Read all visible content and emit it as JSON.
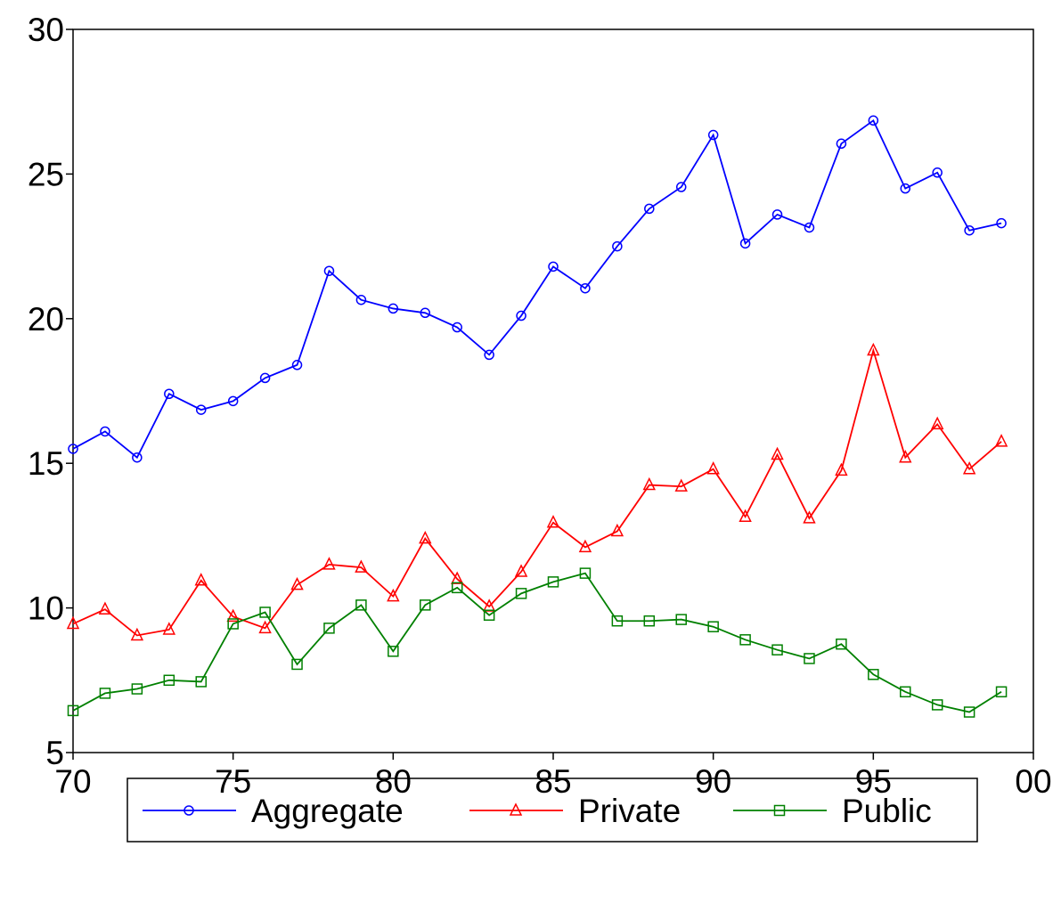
{
  "chart_data": {
    "type": "line",
    "x": [
      70,
      71,
      72,
      73,
      74,
      75,
      76,
      77,
      78,
      79,
      80,
      81,
      82,
      83,
      84,
      85,
      86,
      87,
      88,
      89,
      90,
      91,
      92,
      93,
      94,
      95,
      96,
      97,
      98,
      99
    ],
    "xlim": [
      70,
      100
    ],
    "xticks": [
      70,
      75,
      80,
      85,
      90,
      95,
      {
        "value": 100,
        "label": "00"
      }
    ],
    "ylim": [
      5,
      30
    ],
    "yticks": [
      5,
      10,
      15,
      20,
      25,
      30
    ],
    "legend": "bottom",
    "series": [
      {
        "name": "Aggregate",
        "color": "#0000ff",
        "marker": "circle",
        "values": [
          15.5,
          16.1,
          15.2,
          17.4,
          16.85,
          17.15,
          17.95,
          18.4,
          21.65,
          20.65,
          20.35,
          20.2,
          19.7,
          18.75,
          20.1,
          21.8,
          21.05,
          22.5,
          23.8,
          24.55,
          26.35,
          22.6,
          23.6,
          23.15,
          26.05,
          26.85,
          24.5,
          25.05,
          23.05,
          23.3
        ]
      },
      {
        "name": "Private",
        "color": "#ff0000",
        "marker": "triangle",
        "values": [
          9.45,
          9.95,
          9.05,
          9.25,
          10.95,
          9.7,
          9.3,
          10.8,
          11.5,
          11.4,
          10.4,
          12.4,
          11.0,
          10.05,
          11.25,
          12.95,
          12.1,
          12.65,
          14.25,
          14.2,
          14.8,
          13.15,
          15.3,
          13.1,
          14.75,
          18.9,
          15.2,
          16.35,
          14.8,
          15.75
        ]
      },
      {
        "name": "Public",
        "color": "#008000",
        "marker": "square",
        "values": [
          6.45,
          7.05,
          7.2,
          7.5,
          7.45,
          9.45,
          9.85,
          8.05,
          9.3,
          10.1,
          8.5,
          10.1,
          10.7,
          9.75,
          10.5,
          10.9,
          11.2,
          9.55,
          9.55,
          9.6,
          9.35,
          8.9,
          8.55,
          8.25,
          8.75,
          7.7,
          7.1,
          6.65,
          6.4,
          7.1
        ]
      }
    ]
  }
}
